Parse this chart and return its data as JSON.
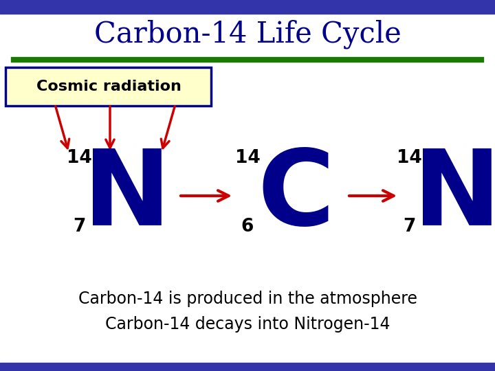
{
  "title": "Carbon-14 Life Cycle",
  "title_color": "#00008B",
  "title_fontsize": 30,
  "bg_color": "#FFFFFF",
  "border_top_color": "#3333AA",
  "green_line_color": "#1A7A00",
  "red_arrow_color": "#CC0000",
  "cosmic_box_color": "#FFFFCC",
  "cosmic_box_edge": "#00008B",
  "cosmic_text": "Cosmic radiation",
  "element1_letter": "N",
  "element1_mass": "14",
  "element1_atomic": "7",
  "element2_letter": "C",
  "element2_mass": "14",
  "element2_atomic": "6",
  "element3_letter": "N",
  "element3_mass": "14",
  "element3_atomic": "7",
  "element_color": "#00008B",
  "number_color": "#000000",
  "caption1": "Carbon-14 is produced in the atmosphere",
  "caption2": "Carbon-14 decays into Nitrogen-14",
  "caption_color": "#000000",
  "caption_fontsize": 17
}
